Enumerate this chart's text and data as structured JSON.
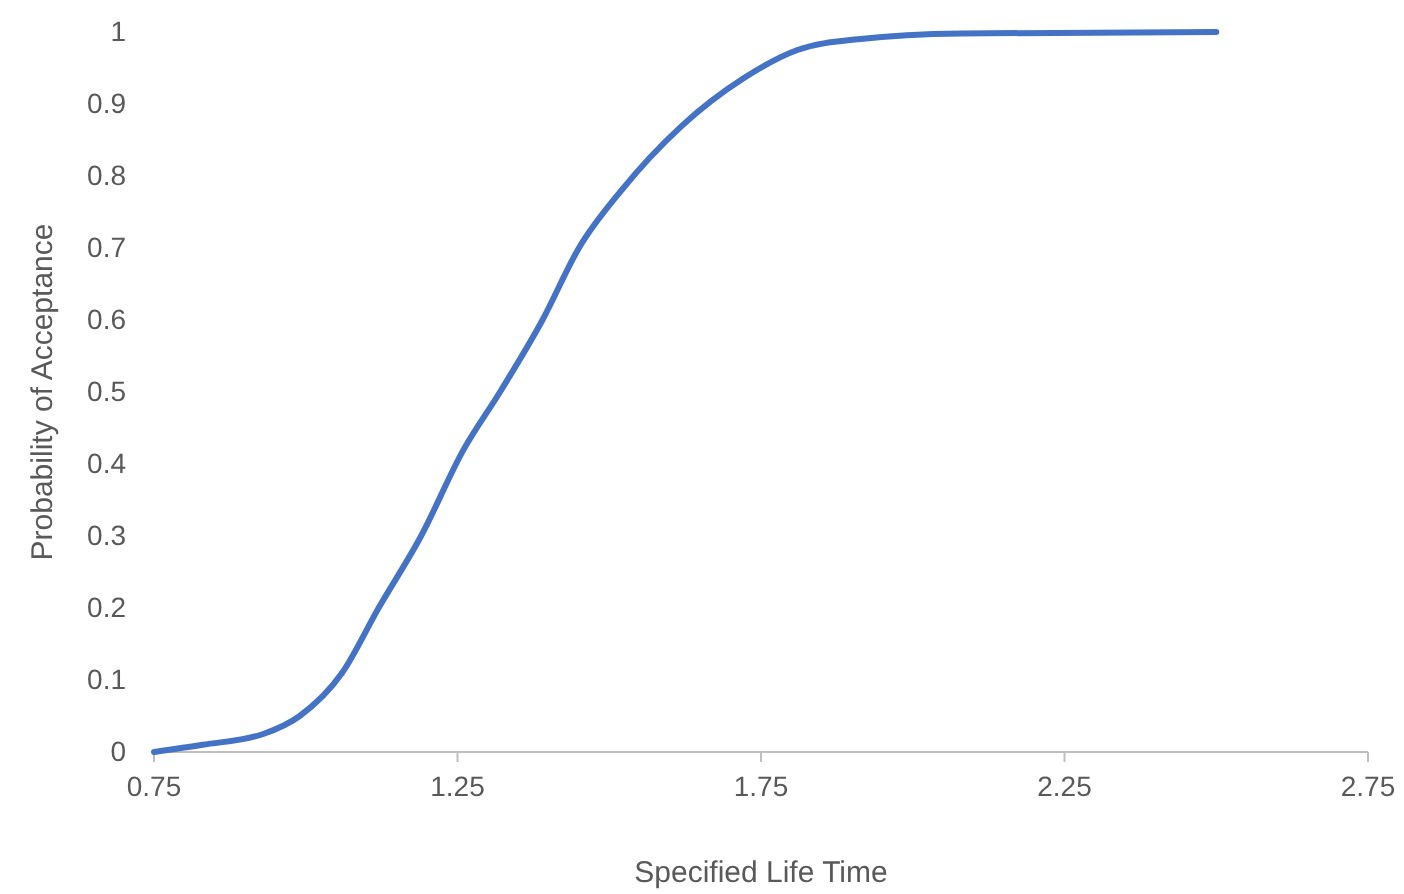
{
  "chart_data": {
    "type": "line",
    "xlabel": "Specified Life Time",
    "ylabel": "Probability of Acceptance",
    "xlim": [
      0.75,
      2.75
    ],
    "xticks": [
      0.75,
      1.25,
      1.75,
      2.25,
      2.75
    ],
    "ylim": [
      0,
      1
    ],
    "yticks": [
      0,
      0.1,
      0.2,
      0.3,
      0.4,
      0.5,
      0.6,
      0.7,
      0.8,
      0.9,
      1
    ],
    "grid": false,
    "marker": "none",
    "line_style": "solid",
    "series": [
      {
        "color": "#4472c4",
        "x": [
          0.75,
          0.83,
          0.93,
          0.99,
          1.06,
          1.12,
          1.19,
          1.26,
          1.32,
          1.39,
          1.45,
          1.52,
          1.62,
          1.72,
          1.81,
          1.91,
          2.08,
          2.5
        ],
        "values": [
          0,
          0.01,
          0.025,
          0.05,
          0.11,
          0.2,
          0.3,
          0.42,
          0.5,
          0.6,
          0.7,
          0.78,
          0.87,
          0.935,
          0.975,
          0.99,
          0.998,
          1
        ]
      }
    ]
  }
}
